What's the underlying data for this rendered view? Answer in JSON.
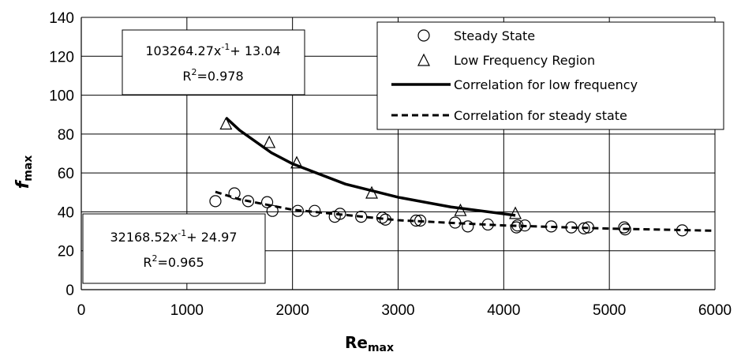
{
  "chart_data": {
    "type": "scatter",
    "xlabel": "Re",
    "xlabel_sub": "max",
    "ylabel": "f",
    "ylabel_sub": "max",
    "xlim": [
      0,
      6000
    ],
    "ylim": [
      0,
      140
    ],
    "x_ticks": [
      0,
      1000,
      2000,
      3000,
      4000,
      5000,
      6000
    ],
    "y_ticks": [
      0,
      20,
      40,
      60,
      80,
      100,
      120,
      140
    ],
    "grid": true,
    "legend_position": "top-right",
    "series": [
      {
        "name": "Steady State",
        "marker": "circle",
        "x": [
          1270,
          1450,
          1580,
          1760,
          1810,
          2050,
          2210,
          2400,
          2450,
          2650,
          2850,
          2880,
          3170,
          3210,
          3540,
          3660,
          3850,
          4120,
          4130,
          4200,
          4450,
          4640,
          4760,
          4800,
          5140,
          5150,
          5690
        ],
        "y": [
          45.5,
          49.5,
          45.5,
          45,
          40.5,
          40.5,
          40.5,
          37.5,
          39,
          37.5,
          37,
          36,
          35.5,
          35.5,
          34.5,
          32.5,
          33.5,
          32,
          33,
          33,
          32.5,
          32,
          31.5,
          32,
          32,
          31,
          30.5
        ]
      },
      {
        "name": "Low Frequency Region",
        "marker": "triangle",
        "x": [
          1370,
          1780,
          2040,
          2750,
          3590,
          4110
        ],
        "y": [
          85,
          75.5,
          65,
          49.5,
          40.5,
          39
        ]
      },
      {
        "name": "Correlation for low frequency",
        "style": "solid",
        "x": [
          1370,
          1500,
          1800,
          2000,
          2500,
          3000,
          3500,
          4110
        ],
        "y": [
          88.4,
          81.9,
          70.4,
          64.7,
          54.3,
          47.5,
          42.5,
          38.2
        ]
      },
      {
        "name": "Correlation for steady state",
        "style": "dashed",
        "x": [
          1270,
          1500,
          2000,
          3000,
          4000,
          5000,
          6000
        ],
        "y": [
          50.3,
          46.4,
          41.1,
          35.7,
          33.0,
          31.4,
          30.3
        ]
      }
    ],
    "annotations": [
      {
        "equation": "103264.27x",
        "exponent": "-1",
        "rest": "+ 13.04",
        "r2_base": "R",
        "r2_exp": "2",
        "r2_val": "=0.978"
      },
      {
        "equation": "32168.52x",
        "exponent": "-1",
        "rest": "+ 24.97",
        "r2_base": "R",
        "r2_exp": "2",
        "r2_val": "=0.965"
      }
    ],
    "colors": {
      "marker_stroke": "#000000",
      "line": "#000000",
      "grid": "#000000"
    }
  }
}
